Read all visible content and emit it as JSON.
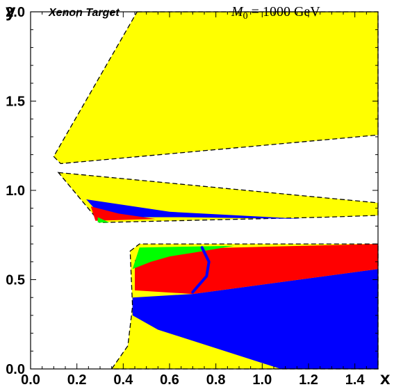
{
  "chart_data": {
    "type": "area",
    "title_left": "Xenon Target",
    "title_right": {
      "symbol": "M",
      "subscript": "0",
      "rest": " = 1000 GeV"
    },
    "xlabel": "x",
    "ylabel": "y",
    "xlim": [
      0.0,
      1.5
    ],
    "ylim": [
      0.0,
      2.0
    ],
    "xticks": [
      "0.0",
      "0.2",
      "0.4",
      "0.6",
      "0.8",
      "1.0",
      "1.2",
      "1.4"
    ],
    "yticks": [
      "0.0",
      "0.5",
      "1.0",
      "1.5",
      "2.0"
    ],
    "grid": false,
    "colors": {
      "yellow": "#ffff00",
      "blue": "#0000ff",
      "red": "#ff0000",
      "green": "#00ff00",
      "boundary": "#000000"
    },
    "regions": [
      {
        "color": "yellow",
        "dashed": true,
        "points": [
          [
            0.46,
            2.0
          ],
          [
            1.5,
            2.0
          ],
          [
            1.5,
            1.31
          ],
          [
            0.13,
            1.15
          ],
          [
            0.1,
            1.19
          ]
        ]
      },
      {
        "color": "yellow",
        "dashed": true,
        "points": [
          [
            0.12,
            1.1
          ],
          [
            1.5,
            0.93
          ],
          [
            1.5,
            0.86
          ],
          [
            1.27,
            0.85
          ],
          [
            0.3,
            0.82
          ]
        ]
      },
      {
        "color": "blue",
        "dashed": false,
        "points": [
          [
            0.24,
            0.95
          ],
          [
            0.6,
            0.88
          ],
          [
            1.18,
            0.84
          ],
          [
            0.65,
            0.85
          ],
          [
            0.31,
            0.85
          ]
        ]
      },
      {
        "color": "red",
        "dashed": false,
        "points": [
          [
            0.26,
            0.91
          ],
          [
            0.38,
            0.87
          ],
          [
            0.54,
            0.84
          ],
          [
            0.28,
            0.83
          ]
        ]
      },
      {
        "color": "green",
        "dashed": false,
        "points": [
          [
            0.29,
            0.85
          ],
          [
            0.34,
            0.82
          ],
          [
            0.29,
            0.82
          ]
        ]
      },
      {
        "color": "yellow",
        "dashed": false,
        "points": [
          [
            0.43,
            0.66
          ],
          [
            0.47,
            0.7
          ],
          [
            1.5,
            0.7
          ],
          [
            1.5,
            0.0
          ],
          [
            0.35,
            0.0
          ],
          [
            0.42,
            0.13
          ],
          [
            0.44,
            0.35
          ]
        ]
      },
      {
        "color": "blue",
        "dashed": false,
        "points": [
          [
            0.44,
            0.4
          ],
          [
            0.7,
            0.42
          ],
          [
            1.5,
            0.56
          ],
          [
            1.5,
            0.0
          ],
          [
            1.08,
            0.0
          ],
          [
            0.55,
            0.22
          ],
          [
            0.44,
            0.3
          ]
        ]
      },
      {
        "color": "red",
        "dashed": false,
        "points": [
          [
            0.45,
            0.61
          ],
          [
            0.56,
            0.67
          ],
          [
            0.88,
            0.68
          ],
          [
            1.5,
            0.7
          ],
          [
            1.5,
            0.56
          ],
          [
            0.7,
            0.42
          ],
          [
            0.45,
            0.44
          ]
        ]
      },
      {
        "color": "green",
        "dashed": false,
        "points": [
          [
            0.44,
            0.56
          ],
          [
            0.47,
            0.68
          ],
          [
            0.88,
            0.69
          ],
          [
            0.7,
            0.65
          ],
          [
            0.6,
            0.63
          ],
          [
            0.52,
            0.6
          ]
        ]
      },
      {
        "color": "blue",
        "dashed": false,
        "line": true,
        "points": [
          [
            0.74,
            0.68
          ],
          [
            0.77,
            0.6
          ],
          [
            0.76,
            0.52
          ],
          [
            0.7,
            0.43
          ]
        ]
      }
    ]
  }
}
